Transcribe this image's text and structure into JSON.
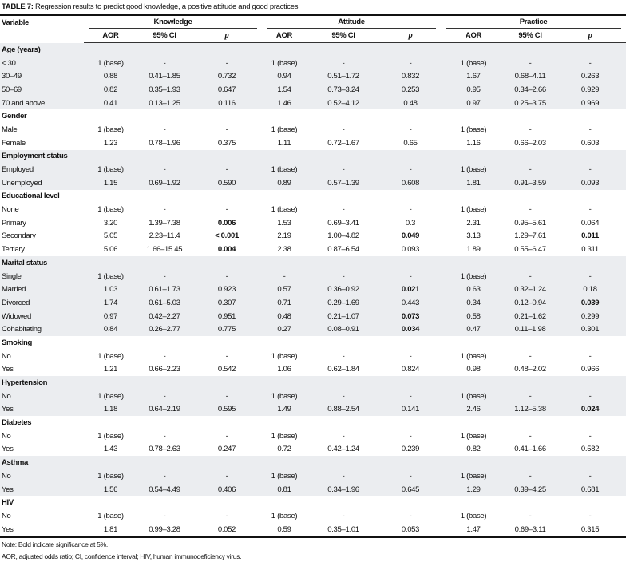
{
  "caption": {
    "label": "TABLE 7:",
    "text": " Regression results to predict good knowledge, a positive attitude and good practices."
  },
  "header": {
    "variable": "Variable",
    "groups": [
      "Knowledge",
      "Attitude",
      "Practice"
    ],
    "subcols": [
      "AOR",
      "95% CI",
      "p"
    ]
  },
  "groups": [
    {
      "name": "Age (years)",
      "shaded": true,
      "rows": [
        {
          "label": "< 30",
          "cells": [
            "1 (base)",
            "-",
            "-",
            "1 (base)",
            "-",
            "-",
            "1 (base)",
            "-",
            "-"
          ],
          "bold": []
        },
        {
          "label": "30–49",
          "cells": [
            "0.88",
            "0.41–1.85",
            "0.732",
            "0.94",
            "0.51–1.72",
            "0.832",
            "1.67",
            "0.68–4.11",
            "0.263"
          ],
          "bold": []
        },
        {
          "label": "50–69",
          "cells": [
            "0.82",
            "0.35–1.93",
            "0.647",
            "1.54",
            "0.73–3.24",
            "0.253",
            "0.95",
            "0.34–2.66",
            "0.929"
          ],
          "bold": []
        },
        {
          "label": "70 and above",
          "cells": [
            "0.41",
            "0.13–1.25",
            "0.116",
            "1.46",
            "0.52–4.12",
            "0.48",
            "0.97",
            "0.25–3.75",
            "0.969"
          ],
          "bold": []
        }
      ]
    },
    {
      "name": "Gender",
      "shaded": false,
      "rows": [
        {
          "label": "Male",
          "cells": [
            "1 (base)",
            "-",
            "-",
            "1 (base)",
            "-",
            "-",
            "1 (base)",
            "-",
            "-"
          ],
          "bold": []
        },
        {
          "label": "Female",
          "cells": [
            "1.23",
            "0.78–1.96",
            "0.375",
            "1.11",
            "0.72–1.67",
            "0.65",
            "1.16",
            "0.66–2.03",
            "0.603"
          ],
          "bold": []
        }
      ]
    },
    {
      "name": "Employment status",
      "shaded": true,
      "rows": [
        {
          "label": "Employed",
          "cells": [
            "1 (base)",
            "-",
            "-",
            "1 (base)",
            "-",
            "-",
            "1 (base)",
            "-",
            "-"
          ],
          "bold": []
        },
        {
          "label": "Unemployed",
          "cells": [
            "1.15",
            "0.69–1.92",
            "0.590",
            "0.89",
            "0.57–1.39",
            "0.608",
            "1.81",
            "0.91–3.59",
            "0.093"
          ],
          "bold": []
        }
      ]
    },
    {
      "name": "Educational level",
      "shaded": false,
      "rows": [
        {
          "label": "None",
          "cells": [
            "1 (base)",
            "-",
            "-",
            "1 (base)",
            "-",
            "-",
            "1 (base)",
            "-",
            "-"
          ],
          "bold": []
        },
        {
          "label": "Primary",
          "cells": [
            "3.20",
            "1.39–7.38",
            "0.006",
            "1.53",
            "0.69–3.41",
            "0.3",
            "2.31",
            "0.95–5.61",
            "0.064"
          ],
          "bold": [
            2
          ]
        },
        {
          "label": "Secondary",
          "cells": [
            "5.05",
            "2.23–11.4",
            "< 0.001",
            "2.19",
            "1.00–4.82",
            "0.049",
            "3.13",
            "1.29–7.61",
            "0.011"
          ],
          "bold": [
            2,
            5,
            8
          ]
        },
        {
          "label": "Tertiary",
          "cells": [
            "5.06",
            "1.66–15.45",
            "0.004",
            "2.38",
            "0.87–6.54",
            "0.093",
            "1.89",
            "0.55–6.47",
            "0.311"
          ],
          "bold": [
            2
          ]
        }
      ]
    },
    {
      "name": "Marital status",
      "shaded": true,
      "rows": [
        {
          "label": "Single",
          "cells": [
            "1 (base)",
            "-",
            "-",
            "-",
            "-",
            "-",
            "1 (base)",
            "-",
            "-"
          ],
          "bold": []
        },
        {
          "label": "Married",
          "cells": [
            "1.03",
            "0.61–1.73",
            "0.923",
            "0.57",
            "0.36–0.92",
            "0.021",
            "0.63",
            "0.32–1.24",
            "0.18"
          ],
          "bold": [
            5
          ]
        },
        {
          "label": "Divorced",
          "cells": [
            "1.74",
            "0.61–5.03",
            "0.307",
            "0.71",
            "0.29–1.69",
            "0.443",
            "0.34",
            "0.12–0.94",
            "0.039"
          ],
          "bold": [
            8
          ]
        },
        {
          "label": "Widowed",
          "cells": [
            "0.97",
            "0.42–2.27",
            "0.951",
            "0.48",
            "0.21–1.07",
            "0.073",
            "0.58",
            "0.21–1.62",
            "0.299"
          ],
          "bold": [
            5
          ]
        },
        {
          "label": "Cohabitating",
          "cells": [
            "0.84",
            "0.26–2.77",
            "0.775",
            "0.27",
            "0.08–0.91",
            "0.034",
            "0.47",
            "0.11–1.98",
            "0.301"
          ],
          "bold": [
            5
          ]
        }
      ]
    },
    {
      "name": "Smoking",
      "shaded": false,
      "rows": [
        {
          "label": "No",
          "cells": [
            "1 (base)",
            "-",
            "-",
            "1 (base)",
            "-",
            "-",
            "1 (base)",
            "-",
            "-"
          ],
          "bold": []
        },
        {
          "label": "Yes",
          "cells": [
            "1.21",
            "0.66–2.23",
            "0.542",
            "1.06",
            "0.62–1.84",
            "0.824",
            "0.98",
            "0.48–2.02",
            "0.966"
          ],
          "bold": []
        }
      ]
    },
    {
      "name": "Hypertension",
      "shaded": true,
      "rows": [
        {
          "label": "No",
          "cells": [
            "1 (base)",
            "-",
            "-",
            "1 (base)",
            "-",
            "-",
            "1 (base)",
            "-",
            "-"
          ],
          "bold": []
        },
        {
          "label": "Yes",
          "cells": [
            "1.18",
            "0.64–2.19",
            "0.595",
            "1.49",
            "0.88–2.54",
            "0.141",
            "2.46",
            "1.12–5.38",
            "0.024"
          ],
          "bold": [
            8
          ]
        }
      ]
    },
    {
      "name": "Diabetes",
      "shaded": false,
      "rows": [
        {
          "label": "No",
          "cells": [
            "1 (base)",
            "-",
            "-",
            "1 (base)",
            "-",
            "-",
            "1 (base)",
            "-",
            "-"
          ],
          "bold": []
        },
        {
          "label": "Yes",
          "cells": [
            "1.43",
            "0.78–2.63",
            "0.247",
            "0.72",
            "0.42–1.24",
            "0.239",
            "0.82",
            "0.41–1.66",
            "0.582"
          ],
          "bold": []
        }
      ]
    },
    {
      "name": "Asthma",
      "shaded": true,
      "rows": [
        {
          "label": "No",
          "cells": [
            "1 (base)",
            "-",
            "-",
            "1 (base)",
            "-",
            "-",
            "1 (base)",
            "-",
            "-"
          ],
          "bold": []
        },
        {
          "label": "Yes",
          "cells": [
            "1.56",
            "0.54–4.49",
            "0.406",
            "0.81",
            "0.34–1.96",
            "0.645",
            "1.29",
            "0.39–4.25",
            "0.681"
          ],
          "bold": []
        }
      ]
    },
    {
      "name": "HIV",
      "shaded": false,
      "rows": [
        {
          "label": "No",
          "cells": [
            "1 (base)",
            "-",
            "-",
            "1 (base)",
            "-",
            "-",
            "1 (base)",
            "-",
            "-"
          ],
          "bold": []
        },
        {
          "label": "Yes",
          "cells": [
            "1.81",
            "0.99–3.28",
            "0.052",
            "0.59",
            "0.35–1.01",
            "0.053",
            "1.47",
            "0.69–3.11",
            "0.315"
          ],
          "bold": []
        }
      ]
    }
  ],
  "notes": [
    "Note: Bold indicate significance at 5%.",
    "AOR, adjusted odds ratio; CI, confidence interval; HIV, human immunodeficiency virus."
  ]
}
